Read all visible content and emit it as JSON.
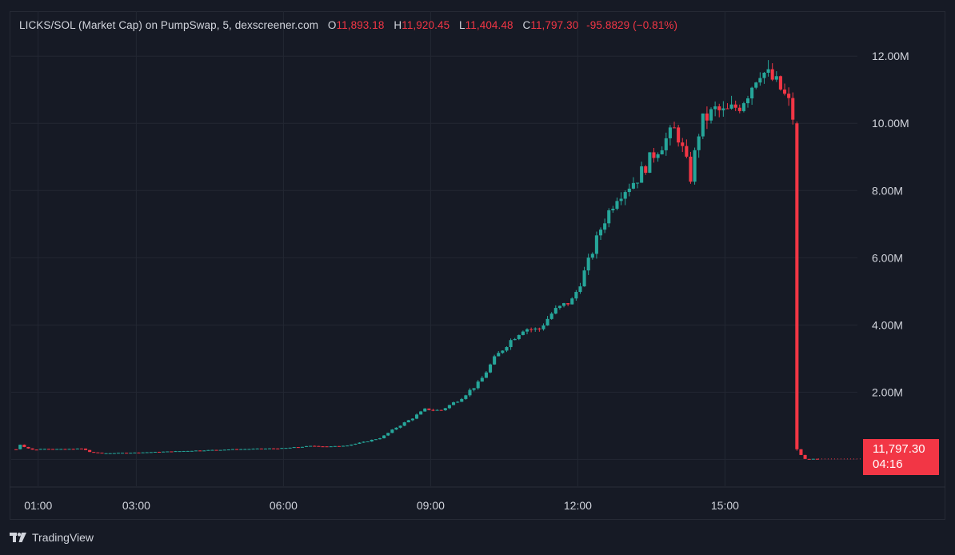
{
  "legend": {
    "symbol_title": "LICKS/SOL (Market Cap) on PumpSwap, 5, dexscreener.com",
    "open_label": "O",
    "open": "11,893.18",
    "high_label": "H",
    "high": "11,920.45",
    "low_label": "L",
    "low": "11,404.48",
    "close_label": "C",
    "close": "11,797.30",
    "change": "-95.8829 (−0.81%)"
  },
  "price_tag": {
    "price": "11,797.30",
    "countdown": "04:16"
  },
  "brand": {
    "name": "TradingView"
  },
  "colors": {
    "up": "#26a69a",
    "down": "#f23645",
    "background": "#161a25",
    "grid": "#232733",
    "text": "#d1d4dc"
  },
  "chart_data": {
    "type": "candlestick",
    "title": "LICKS/SOL (Market Cap) on PumpSwap, 5, dexscreener.com",
    "grid": true,
    "y_axis_side": "right",
    "ylim": [
      -800000,
      12600000
    ],
    "y_ticks": [
      {
        "value": 2000000,
        "label": "2.00M"
      },
      {
        "value": 4000000,
        "label": "4.00M"
      },
      {
        "value": 6000000,
        "label": "6.00M"
      },
      {
        "value": 8000000,
        "label": "8.00M"
      },
      {
        "value": 10000000,
        "label": "10.00M"
      },
      {
        "value": 12000000,
        "label": "12.00M"
      }
    ],
    "xlim_hours": [
      0.45,
      17.7
    ],
    "x_ticks": [
      {
        "value": 1,
        "label": "01:00"
      },
      {
        "value": 3,
        "label": "03:00"
      },
      {
        "value": 6,
        "label": "06:00"
      },
      {
        "value": 9,
        "label": "09:00"
      },
      {
        "value": 12,
        "label": "12:00"
      },
      {
        "value": 15,
        "label": "15:00"
      }
    ],
    "close_path": [
      [
        0.55,
        0.3
      ],
      [
        0.62,
        0.45
      ],
      [
        0.75,
        0.35
      ],
      [
        0.9,
        0.28
      ],
      [
        1.1,
        0.32
      ],
      [
        1.5,
        0.3
      ],
      [
        1.9,
        0.32
      ],
      [
        2.05,
        0.22
      ],
      [
        2.3,
        0.18
      ],
      [
        3.0,
        0.2
      ],
      [
        4.0,
        0.25
      ],
      [
        5.0,
        0.3
      ],
      [
        6.0,
        0.33
      ],
      [
        6.6,
        0.4
      ],
      [
        7.0,
        0.38
      ],
      [
        7.3,
        0.42
      ],
      [
        7.6,
        0.5
      ],
      [
        8.0,
        0.65
      ],
      [
        8.3,
        0.95
      ],
      [
        8.6,
        1.2
      ],
      [
        8.9,
        1.5
      ],
      [
        9.2,
        1.45
      ],
      [
        9.6,
        1.8
      ],
      [
        10.0,
        2.3
      ],
      [
        10.3,
        3.0
      ],
      [
        10.6,
        3.5
      ],
      [
        10.9,
        3.9
      ],
      [
        11.2,
        3.85
      ],
      [
        11.5,
        4.4
      ],
      [
        11.9,
        4.75
      ],
      [
        12.2,
        5.8
      ],
      [
        12.5,
        7.0
      ],
      [
        12.8,
        7.85
      ],
      [
        13.2,
        8.35
      ],
      [
        13.6,
        9.2
      ],
      [
        14.0,
        9.85
      ],
      [
        14.3,
        8.4
      ],
      [
        14.5,
        10.0
      ],
      [
        14.8,
        10.4
      ],
      [
        15.0,
        10.3
      ],
      [
        15.3,
        10.55
      ],
      [
        15.5,
        11.0
      ],
      [
        15.7,
        11.6
      ],
      [
        15.9,
        11.4
      ],
      [
        16.1,
        11.1
      ],
      [
        16.3,
        10.6
      ],
      [
        16.42,
        10.0
      ],
      [
        16.48,
        0.3
      ],
      [
        16.6,
        0.01
      ],
      [
        16.9,
        0.0118
      ]
    ],
    "close_path_units": "hours, millions",
    "last_price": 11797.3
  }
}
